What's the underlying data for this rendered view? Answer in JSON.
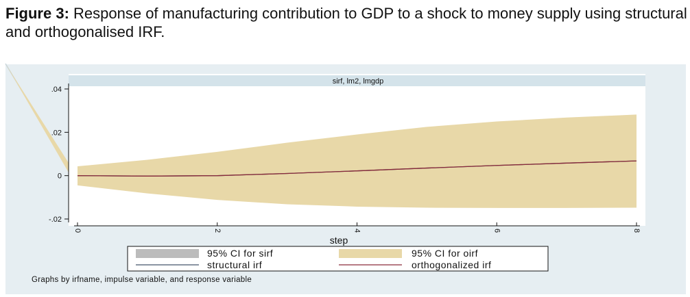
{
  "caption": {
    "label": "Figure 3:",
    "text": " Response of manufacturing contribution to GDP to a shock to money supply using structural and orthogonalised IRF."
  },
  "chart_data": {
    "type": "area",
    "panel_title": "sirf, lm2, lmgdp",
    "xlabel": "step",
    "ylabel": "",
    "xlim": [
      0,
      8
    ],
    "ylim": [
      -0.021,
      0.041
    ],
    "x_ticks": [
      0,
      2,
      4,
      6,
      8
    ],
    "x_tick_labels": [
      "0",
      "2",
      "4",
      "6",
      "8"
    ],
    "y_ticks": [
      -0.02,
      0,
      0.02,
      0.04
    ],
    "y_tick_labels": [
      "-.02",
      "0",
      ".02",
      ".04"
    ],
    "x": [
      0,
      1,
      2,
      3,
      4,
      5,
      6,
      7,
      8
    ],
    "series": [
      {
        "name": "95% CI for oirf",
        "kind": "band",
        "lower": [
          -0.0045,
          -0.0082,
          -0.0112,
          -0.0132,
          -0.0143,
          -0.0148,
          -0.0149,
          -0.0149,
          -0.0148
        ],
        "upper": [
          0.0043,
          0.0073,
          0.011,
          0.0152,
          0.019,
          0.0225,
          0.025,
          0.0268,
          0.0282
        ],
        "color": "#e8d8a8"
      },
      {
        "name": "95% CI for sirf",
        "kind": "band",
        "lower": [],
        "upper": [],
        "color": "#bcbcbc"
      },
      {
        "name": "structural irf",
        "kind": "line",
        "values": [
          0.0,
          -0.0002,
          0.0,
          0.001,
          0.0022,
          0.0035,
          0.0047,
          0.0058,
          0.0068
        ],
        "color": "#44556a"
      },
      {
        "name": "orthogonalized irf",
        "kind": "line",
        "values": [
          0.0,
          -0.0002,
          0.0,
          0.001,
          0.0022,
          0.0035,
          0.0047,
          0.0058,
          0.0068
        ],
        "color": "#8a2a3a"
      }
    ],
    "legend": {
      "placement": "bottom",
      "entries": [
        "95% CI for sirf",
        "95% CI for oirf",
        "structural irf",
        "orthogonalized irf"
      ]
    },
    "note": "Graphs by irfname, impulse variable, and response variable",
    "grid": false
  },
  "colors": {
    "panel_bg": "#e6eef2",
    "plot_bg": "#ffffff",
    "header_bg": "#d4e3ea",
    "ci_oirf": "#e8d8a8",
    "ci_sirf": "#bcbcbc",
    "structural_line": "#44556a",
    "orthogonal_line": "#8a2a3a"
  }
}
